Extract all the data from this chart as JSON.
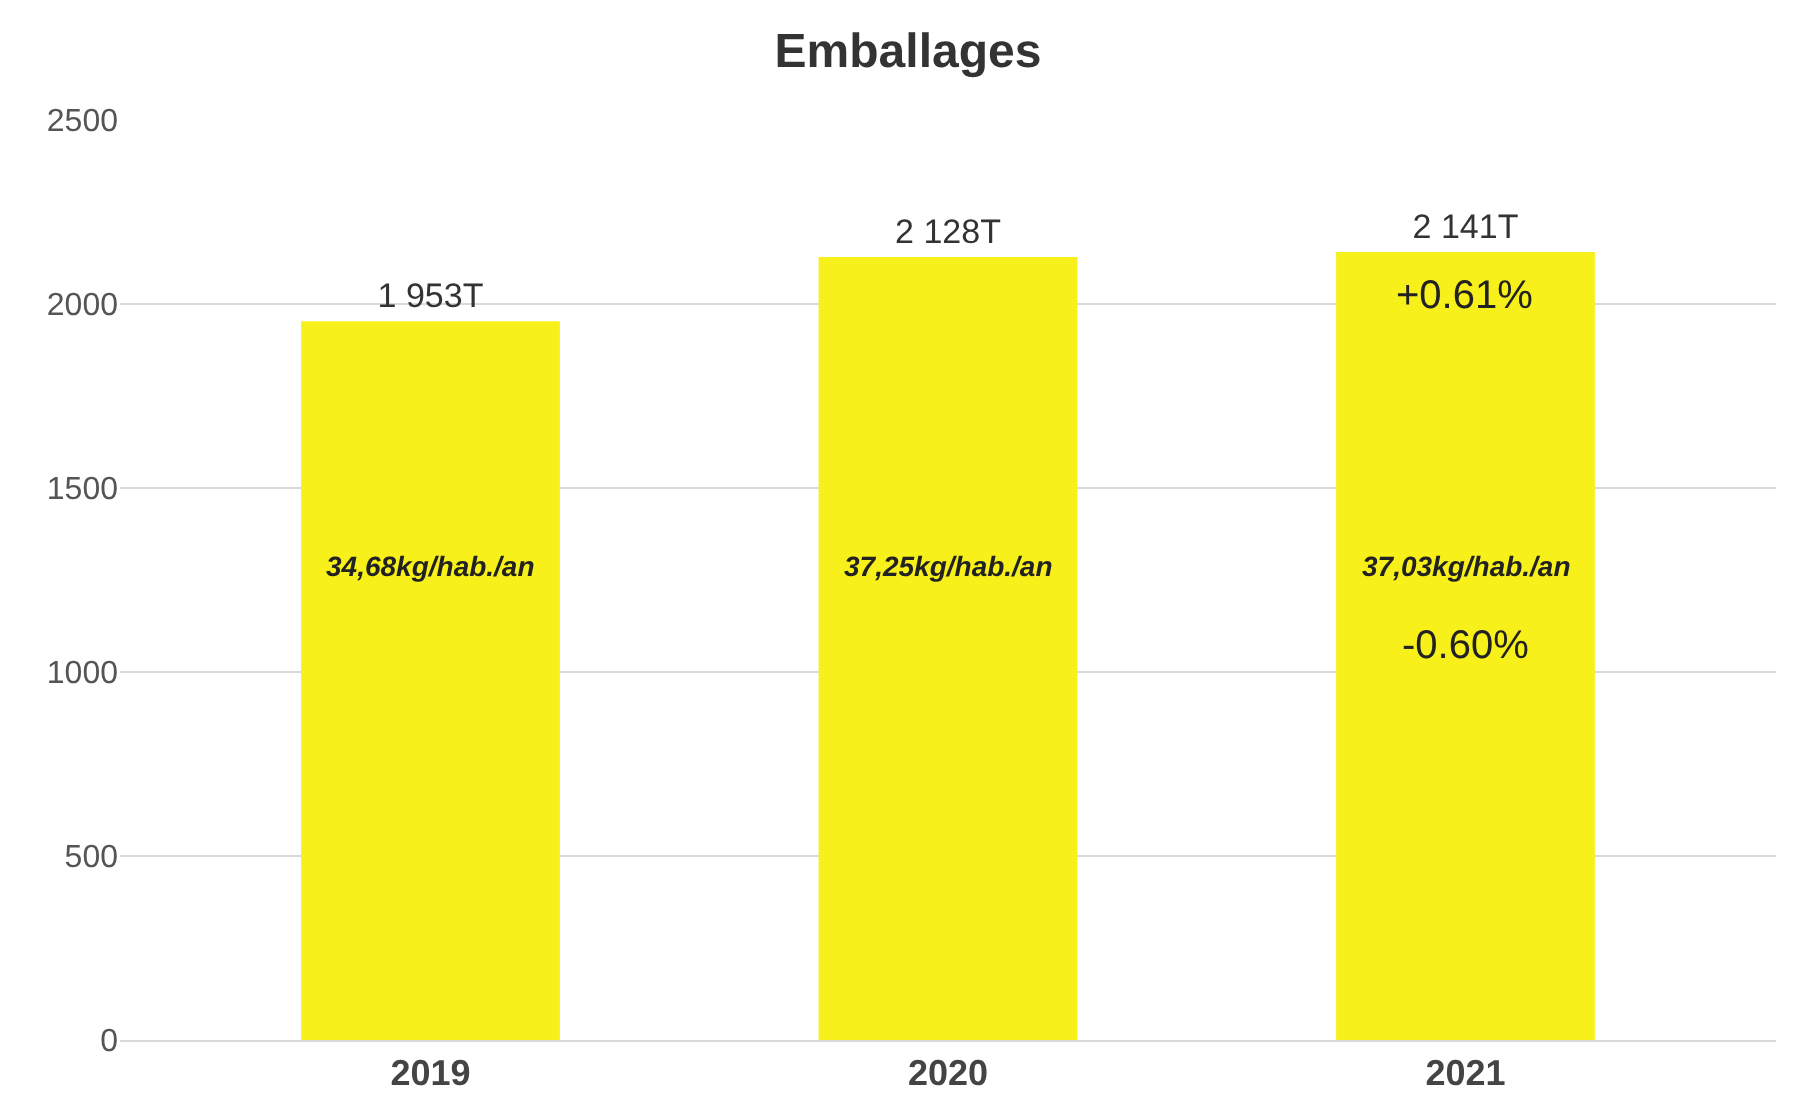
{
  "chart_data": {
    "type": "bar",
    "title": "Emballages",
    "categories": [
      "2019",
      "2020",
      "2021"
    ],
    "values": [
      1953,
      2128,
      2141
    ],
    "value_labels": [
      "1 953T",
      "2 128T",
      "2 141T"
    ],
    "color": "#f7f01a",
    "ylim": [
      0,
      2500
    ],
    "yticks": [
      0,
      500,
      1000,
      1500,
      2000,
      2500
    ],
    "grid": "y",
    "annotations": [
      "34,68kg/hab./an",
      "37,25kg/hab./an",
      "37,03kg/hab./an",
      "+0.61%",
      "-0.60%"
    ]
  }
}
